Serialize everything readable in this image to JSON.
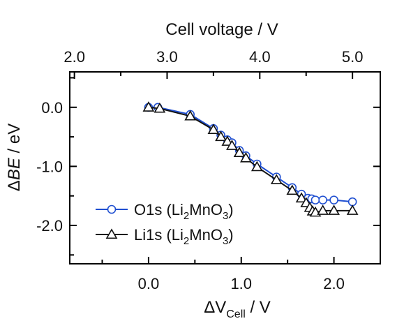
{
  "chart_data": {
    "type": "line",
    "title": "",
    "xlabel": {
      "prefix": "ΔV",
      "sub": "Cell",
      "suffix": " / V"
    },
    "ylabel": {
      "prefix": "Δ",
      "italic": "BE",
      "suffix": " / eV"
    },
    "top_xlabel": "Cell voltage / V",
    "xlim": [
      -0.85,
      2.5
    ],
    "ylim": [
      -2.65,
      0.6
    ],
    "top_axis_offset": 2.8,
    "x_ticks": [
      {
        "value": 0.0,
        "label": "0.0"
      },
      {
        "value": 1.0,
        "label": "1.0"
      },
      {
        "value": 2.0,
        "label": "2.0"
      }
    ],
    "top_ticks": [
      {
        "value": 2.0,
        "label": "2.0"
      },
      {
        "value": 3.0,
        "label": "3.0"
      },
      {
        "value": 4.0,
        "label": "4.0"
      },
      {
        "value": 5.0,
        "label": "5.0"
      }
    ],
    "y_ticks": [
      {
        "value": 0.0,
        "label": "0.0"
      },
      {
        "value": -1.0,
        "label": "-1.0"
      },
      {
        "value": -2.0,
        "label": "-2.0"
      }
    ],
    "grid": false,
    "legend_position": "bottom-left",
    "series": [
      {
        "name": "O1s (Li",
        "sub1": "2",
        "mid": "MnO",
        "sub2": "3",
        "end": ")",
        "marker": "circle",
        "color": "#1f4fd1",
        "x": [
          0.0,
          0.1,
          0.45,
          0.7,
          0.78,
          0.85,
          0.9,
          0.98,
          1.05,
          1.17,
          1.38,
          1.55,
          1.65,
          1.72,
          1.76,
          1.8,
          1.88,
          2.0,
          2.2
        ],
        "y": [
          0.0,
          0.0,
          -0.12,
          -0.36,
          -0.47,
          -0.55,
          -0.6,
          -0.73,
          -0.82,
          -0.96,
          -1.18,
          -1.36,
          -1.47,
          -1.54,
          -1.55,
          -1.57,
          -1.57,
          -1.57,
          -1.6
        ]
      },
      {
        "name": "Li1s (Li",
        "sub1": "2",
        "mid": "MnO",
        "sub2": "3",
        "end": ")",
        "marker": "triangle",
        "color": "#111111",
        "x": [
          0.0,
          0.12,
          0.45,
          0.7,
          0.78,
          0.85,
          0.9,
          0.98,
          1.05,
          1.17,
          1.38,
          1.55,
          1.65,
          1.7,
          1.74,
          1.77,
          1.8,
          1.88,
          2.0,
          2.2
        ],
        "y": [
          0.0,
          -0.02,
          -0.15,
          -0.38,
          -0.5,
          -0.58,
          -0.65,
          -0.77,
          -0.86,
          -1.01,
          -1.23,
          -1.41,
          -1.54,
          -1.62,
          -1.7,
          -1.76,
          -1.78,
          -1.75,
          -1.75,
          -1.75
        ]
      }
    ]
  }
}
